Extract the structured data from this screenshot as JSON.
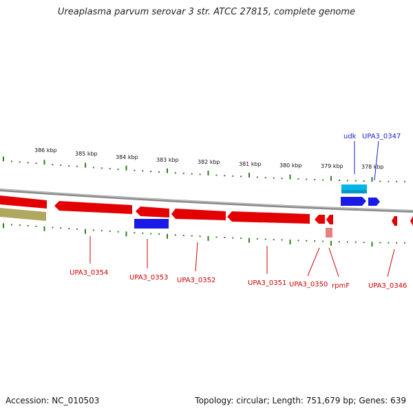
{
  "title": "Ureaplasma parvum serovar 3 str. ATCC 27815, complete genome",
  "footer": {
    "accession": "Accession: NC_010503",
    "stats": "Topology: circular; Length: 751,679 bp; Genes: 639"
  },
  "colors": {
    "backbone": "#8a8a8a",
    "tick": "#2e7d1e",
    "forward_gene": "#1a1ae6",
    "forward_label": "#1a1ad0",
    "reverse_gene": "#e30000",
    "reverse_label": "#cc0000",
    "rna_gene": "#00b7e6",
    "other_feature": "#b0a860",
    "pseudo_gene": "#e88080"
  },
  "ticks": [
    {
      "label": "386 kbp"
    },
    {
      "label": "385 kbp"
    },
    {
      "label": "384 kbp"
    },
    {
      "label": "383 kbp"
    },
    {
      "label": "382 kbp"
    },
    {
      "label": "381 kbp"
    },
    {
      "label": "380 kbp"
    },
    {
      "label": "379 kbp"
    },
    {
      "label": "378 kbp"
    }
  ],
  "genes_top": [
    {
      "name": "udk"
    },
    {
      "name": "UPA3_0347"
    }
  ],
  "genes_bottom": [
    {
      "name": "UPA3_0354"
    },
    {
      "name": "UPA3_0353"
    },
    {
      "name": "UPA3_0352"
    },
    {
      "name": "UPA3_0351"
    },
    {
      "name": "UPA3_0350"
    },
    {
      "name": "rpmF"
    },
    {
      "name": "UPA3_0346"
    }
  ]
}
